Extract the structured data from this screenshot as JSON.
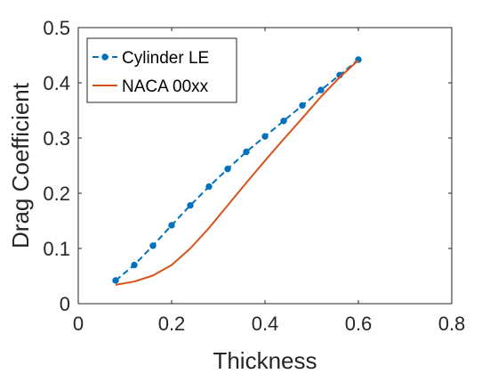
{
  "chart_data": {
    "type": "line",
    "title": "",
    "xlabel": "Thickness",
    "ylabel": "Drag Coefficient",
    "xlim": [
      0,
      0.8
    ],
    "ylim": [
      0,
      0.5
    ],
    "x_ticks": [
      0,
      0.2,
      0.4,
      0.6,
      0.8
    ],
    "x_tick_labels": [
      "0",
      "0.2",
      "0.4",
      "0.6",
      "0.8"
    ],
    "y_ticks": [
      0,
      0.1,
      0.2,
      0.3,
      0.4,
      0.5
    ],
    "y_tick_labels": [
      "0",
      "0.1",
      "0.2",
      "0.3",
      "0.4",
      "0.5"
    ],
    "grid": false,
    "legend_position": "top-left",
    "series": [
      {
        "name": "Cylinder LE",
        "color": "#0072BD",
        "line_style": "dashed",
        "marker": "circle",
        "x": [
          0.08,
          0.12,
          0.16,
          0.2,
          0.24,
          0.28,
          0.32,
          0.36,
          0.4,
          0.44,
          0.48,
          0.52,
          0.56,
          0.6
        ],
        "y": [
          0.042,
          0.07,
          0.105,
          0.142,
          0.178,
          0.212,
          0.244,
          0.275,
          0.303,
          0.331,
          0.359,
          0.387,
          0.414,
          0.442
        ]
      },
      {
        "name": "NACA 00xx",
        "color": "#D95319",
        "line_style": "solid",
        "marker": "none",
        "x": [
          0.08,
          0.12,
          0.16,
          0.2,
          0.24,
          0.28,
          0.32,
          0.36,
          0.4,
          0.44,
          0.48,
          0.52,
          0.56,
          0.6
        ],
        "y": [
          0.034,
          0.04,
          0.051,
          0.07,
          0.1,
          0.137,
          0.178,
          0.219,
          0.259,
          0.298,
          0.336,
          0.375,
          0.41,
          0.441
        ]
      }
    ]
  }
}
